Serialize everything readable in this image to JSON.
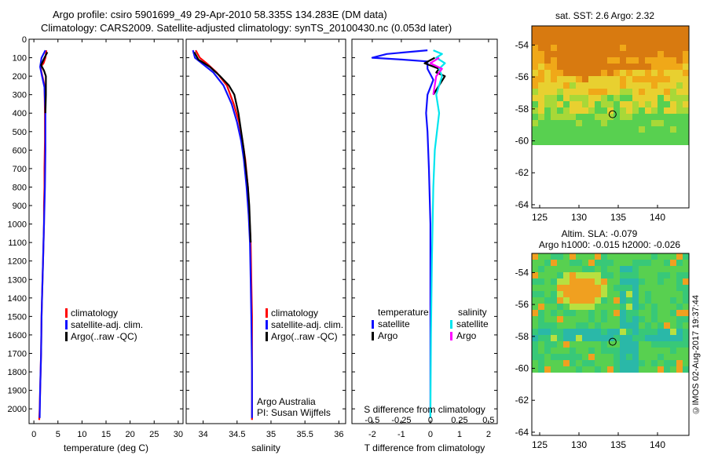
{
  "titles": {
    "line1": "Argo profile: csiro 5901699_49 29-Apr-2010 58.335S 134.283E (DM data)",
    "line2": "Climatology: CARS2009. Satellite-adjusted climatology: synTS_20100430.nc (0.053d later)"
  },
  "credit": "©IMOS 02-Aug-2017 19:37:44",
  "colors": {
    "climatology": "#ff0000",
    "satellite": "#1010ff",
    "argo": "#000000",
    "salinity_sat": "#00e5ee",
    "salinity_argo": "#ff00ff"
  },
  "chart_data": [
    {
      "id": "temperature",
      "type": "line",
      "xlabel": "temperature (deg C)",
      "xlim": [
        -1,
        31
      ],
      "xticks": [
        0,
        5,
        10,
        15,
        20,
        25,
        30
      ],
      "ylim": [
        2080,
        0
      ],
      "yticks": [
        0,
        100,
        200,
        300,
        400,
        500,
        600,
        700,
        800,
        900,
        1000,
        1100,
        1200,
        1300,
        1400,
        1500,
        1600,
        1700,
        1800,
        1900,
        2000
      ],
      "legend": [
        "climatology",
        "satellite-adj. clim.",
        "Argo(..raw -QC)"
      ],
      "series": [
        {
          "name": "climatology",
          "color": "#ff0000",
          "x": [
            2.6,
            2.4,
            2.0,
            1.4,
            1.6,
            2.2,
            2.3,
            2.3,
            2.2,
            2.2,
            2.1,
            2.1,
            2.0,
            1.9,
            1.7,
            1.6,
            1.5,
            1.4,
            1.3,
            1.2,
            1.1
          ],
          "y": [
            60,
            100,
            130,
            150,
            180,
            250,
            400,
            550,
            700,
            800,
            900,
            1000,
            1100,
            1200,
            1400,
            1500,
            1700,
            1800,
            1900,
            2000,
            2060
          ]
        },
        {
          "name": "satellite-adj. clim.",
          "color": "#1010ff",
          "x": [
            2.4,
            1.6,
            1.3,
            1.7,
            2.2,
            2.4,
            2.4,
            2.3,
            2.2,
            2.1,
            2.0,
            1.9,
            1.7,
            1.6,
            1.5,
            1.4,
            1.3,
            1.2
          ],
          "y": [
            60,
            100,
            150,
            200,
            260,
            400,
            600,
            800,
            900,
            1000,
            1100,
            1200,
            1400,
            1500,
            1700,
            1800,
            1900,
            2050
          ]
        },
        {
          "name": "Argo(..raw -QC)",
          "color": "#000000",
          "x": [
            2.8,
            2.2,
            1.5,
            2.1,
            2.5,
            2.5,
            2.4
          ],
          "y": [
            70,
            100,
            140,
            170,
            200,
            300,
            400
          ]
        }
      ]
    },
    {
      "id": "salinity",
      "type": "line",
      "xlabel": "salinity",
      "xlim": [
        33.75,
        36.1
      ],
      "xticks": [
        34,
        34.5,
        35,
        35.5,
        36
      ],
      "ylim": [
        2080,
        0
      ],
      "legend": [
        "climatology",
        "satellite-adj. clim.",
        "Argo(..raw -QC)"
      ],
      "annotations": [
        "Argo Australia",
        "PI: Susan Wijffels"
      ],
      "series": [
        {
          "name": "climatology",
          "color": "#ff0000",
          "x": [
            33.89,
            33.95,
            34.05,
            34.2,
            34.35,
            34.45,
            34.53,
            34.58,
            34.62,
            34.66,
            34.68,
            34.7,
            34.71,
            34.72,
            34.72,
            34.72
          ],
          "y": [
            60,
            100,
            130,
            180,
            250,
            350,
            450,
            550,
            650,
            800,
            950,
            1100,
            1300,
            1500,
            1800,
            2060
          ]
        },
        {
          "name": "satellite-adj. clim.",
          "color": "#1010ff",
          "x": [
            33.85,
            33.88,
            33.98,
            34.15,
            34.3,
            34.42,
            34.5,
            34.56,
            34.6,
            34.64,
            34.67,
            34.69,
            34.7,
            34.71,
            34.72,
            34.72
          ],
          "y": [
            60,
            100,
            130,
            180,
            250,
            350,
            450,
            550,
            650,
            800,
            950,
            1100,
            1300,
            1500,
            1800,
            2050
          ]
        },
        {
          "name": "Argo(..raw -QC)",
          "color": "#000000",
          "x": [
            33.87,
            33.93,
            34.1,
            34.25,
            34.38,
            34.46,
            34.52,
            34.56,
            34.6,
            34.63,
            34.66,
            34.68,
            34.69,
            34.7
          ],
          "y": [
            70,
            110,
            150,
            200,
            250,
            300,
            400,
            500,
            600,
            700,
            800,
            900,
            1000,
            1100
          ]
        }
      ]
    },
    {
      "id": "difference",
      "type": "line",
      "xlabel": "T difference from climatology",
      "xlabel_top": "S difference from climatology",
      "xlim": [
        -2.7,
        2.3
      ],
      "xticks": [
        -2,
        -1,
        0,
        1,
        2
      ],
      "xticks_top": [
        -0.5,
        -0.25,
        0,
        0.25,
        0.5
      ],
      "ylim": [
        2080,
        0
      ],
      "legend": {
        "temperature": [
          "satellite",
          "Argo"
        ],
        "salinity": [
          "satellite",
          "Argo"
        ]
      },
      "legend_titles": [
        "temperature",
        "salinity"
      ],
      "series": [
        {
          "name": "temperature satellite",
          "color": "#1010ff",
          "x": [
            -0.1,
            -1.5,
            -2.0,
            -1.0,
            -0.1,
            -0.1,
            0.1,
            -0.1,
            -0.15,
            -0.1,
            -0.05,
            0.0,
            0.0,
            0.0
          ],
          "y": [
            60,
            80,
            100,
            110,
            120,
            160,
            220,
            300,
            400,
            500,
            700,
            1000,
            1500,
            2050
          ]
        },
        {
          "name": "temperature Argo",
          "color": "#000000",
          "x": [
            0.15,
            -0.2,
            0.3,
            0.2,
            0.5,
            0.1
          ],
          "y": [
            100,
            130,
            160,
            180,
            200,
            300
          ]
        },
        {
          "name": "salinity satellite",
          "color": "#00e5ee",
          "x": [
            0.1,
            0.4,
            0.2,
            0.5,
            0.3,
            0.4,
            0.2,
            0.3,
            0.15,
            0.1,
            0.05,
            0.02,
            0.0
          ],
          "y": [
            60,
            80,
            100,
            130,
            160,
            200,
            300,
            400,
            600,
            800,
            1200,
            1600,
            2050
          ]
        },
        {
          "name": "salinity Argo",
          "color": "#ff00ff",
          "x": [
            0.3,
            0.0,
            0.4,
            0.2,
            0.1
          ],
          "y": [
            100,
            130,
            160,
            200,
            300
          ]
        }
      ]
    },
    {
      "id": "sst_map",
      "type": "heatmap",
      "title": "sat. SST: 2.6 Argo: 2.32",
      "xlim": [
        124,
        144
      ],
      "ylim": [
        -64.2,
        -52.8
      ],
      "xticks": [
        125,
        130,
        135,
        140
      ],
      "yticks": [
        -54,
        -56,
        -58,
        -60,
        -62,
        -64
      ],
      "marker": [
        134.283,
        -58.335
      ]
    },
    {
      "id": "sla_map",
      "type": "heatmap",
      "title": "Altim. SLA: -0.079",
      "subtitle": "Argo h1000: -0.015 h2000: -0.026",
      "xlim": [
        124,
        144
      ],
      "ylim": [
        -64.2,
        -52.8
      ],
      "xticks": [
        125,
        130,
        135,
        140
      ],
      "yticks": [
        -54,
        -56,
        -58,
        -60,
        -62,
        -64
      ],
      "marker": [
        134.283,
        -58.335
      ]
    }
  ]
}
